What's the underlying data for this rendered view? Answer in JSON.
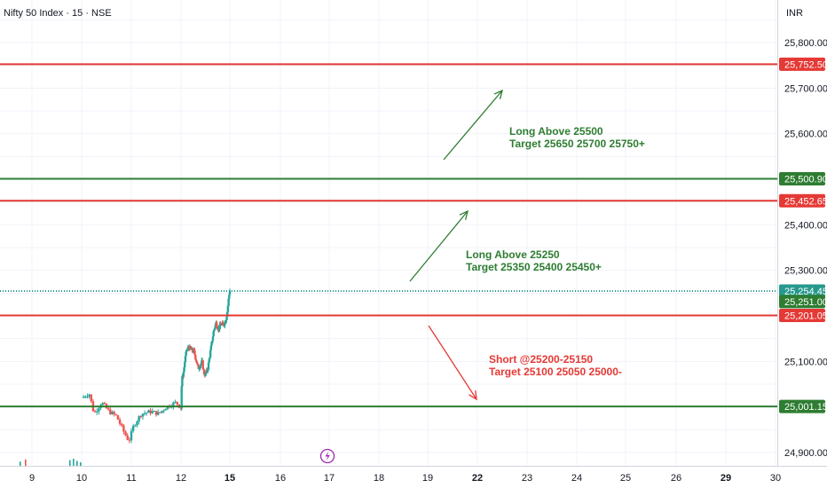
{
  "chart_data": {
    "type": "candlestick",
    "title": "Nifty 50 Index · 15 · NSE",
    "currency": "INR",
    "ylim": [
      24870,
      25860
    ],
    "y_ticks": [
      {
        "v": 25800,
        "label": "25,800.00"
      },
      {
        "v": 25700,
        "label": "25,700.00"
      },
      {
        "v": 25600,
        "label": "25,600.00"
      },
      {
        "v": 25400,
        "label": "25,400.00"
      },
      {
        "v": 25300,
        "label": "25,300.00"
      },
      {
        "v": 25100,
        "label": "25,100.00"
      },
      {
        "v": 24900,
        "label": "24,900.00"
      }
    ],
    "x_ticks": [
      {
        "day": 9,
        "label": "9",
        "bold": false
      },
      {
        "day": 10,
        "label": "10",
        "bold": false
      },
      {
        "day": 11,
        "label": "11",
        "bold": false
      },
      {
        "day": 12,
        "label": "12",
        "bold": false
      },
      {
        "day": 15,
        "label": "15",
        "bold": true
      },
      {
        "day": 16,
        "label": "16",
        "bold": false
      },
      {
        "day": 17,
        "label": "17",
        "bold": false
      },
      {
        "day": 18,
        "label": "18",
        "bold": false
      },
      {
        "day": 19,
        "label": "19",
        "bold": false
      },
      {
        "day": 22,
        "label": "22",
        "bold": true
      },
      {
        "day": 23,
        "label": "23",
        "bold": false
      },
      {
        "day": 24,
        "label": "24",
        "bold": false
      },
      {
        "day": 25,
        "label": "25",
        "bold": false
      },
      {
        "day": 26,
        "label": "26",
        "bold": false
      },
      {
        "day": 29,
        "label": "29",
        "bold": true
      },
      {
        "day": 30,
        "label": "30",
        "bold": false
      }
    ],
    "price_path": [
      [
        10.0,
        25020
      ],
      [
        10.15,
        25030
      ],
      [
        10.25,
        24985
      ],
      [
        10.4,
        25010
      ],
      [
        10.55,
        24990
      ],
      [
        10.7,
        24980
      ],
      [
        10.85,
        24945
      ],
      [
        10.95,
        24925
      ],
      [
        11.05,
        24960
      ],
      [
        11.2,
        24985
      ],
      [
        11.4,
        24990
      ],
      [
        11.55,
        24985
      ],
      [
        11.7,
        25000
      ],
      [
        11.9,
        25010
      ],
      [
        12.0,
        24998
      ],
      [
        12.05,
        25060
      ],
      [
        12.15,
        25075
      ],
      [
        12.25,
        25105
      ],
      [
        12.35,
        25125
      ],
      [
        12.5,
        25130
      ],
      [
        12.65,
        25125
      ],
      [
        12.8,
        25122
      ],
      [
        12.95,
        25100
      ],
      [
        13.05,
        25085
      ],
      [
        13.15,
        25090
      ],
      [
        13.3,
        25100
      ],
      [
        13.4,
        25075
      ],
      [
        13.5,
        25070
      ],
      [
        13.65,
        25085
      ],
      [
        13.8,
        25120
      ],
      [
        14.0,
        25165
      ],
      [
        14.15,
        25185
      ],
      [
        14.3,
        25170
      ],
      [
        14.45,
        25182
      ],
      [
        14.6,
        25180
      ],
      [
        14.75,
        25190
      ],
      [
        14.85,
        25210
      ],
      [
        14.92,
        25235
      ],
      [
        15.0,
        25258
      ]
    ],
    "levels": [
      {
        "value": 25752.5,
        "label": "25,752.50",
        "color": "#e53935"
      },
      {
        "value": 25500.9,
        "label": "25,500.90",
        "color": "#2e7d32"
      },
      {
        "value": 25452.65,
        "label": "25,452.65",
        "color": "#e53935"
      },
      {
        "value": 25254.45,
        "label": "25,254.45",
        "color": "#26998e",
        "dotted": true
      },
      {
        "value": 25251.0,
        "label": "25,251.00",
        "color": "#2e7d32",
        "label_only": true
      },
      {
        "value": 25201.05,
        "label": "25,201.05",
        "color": "#e53935"
      },
      {
        "value": 25001.15,
        "label": "25,001.15",
        "color": "#2e7d32"
      }
    ],
    "annotations": [
      {
        "line1": "Long Above 25500",
        "line2": "Target 25650 25700 25750+",
        "color": "#2e7d32"
      },
      {
        "line1": "Long Above 25250",
        "line2": "Target 25350 25400 25450+",
        "color": "#2e7d32"
      },
      {
        "line1": "Short @25200-25150",
        "line2": "Target 25100 25050 25000-",
        "color": "#e53935"
      }
    ],
    "colors": {
      "up": "#26a69a",
      "down": "#ef5350",
      "grid": "#f0f3fa",
      "axis_border": "#d1d4dc"
    }
  }
}
